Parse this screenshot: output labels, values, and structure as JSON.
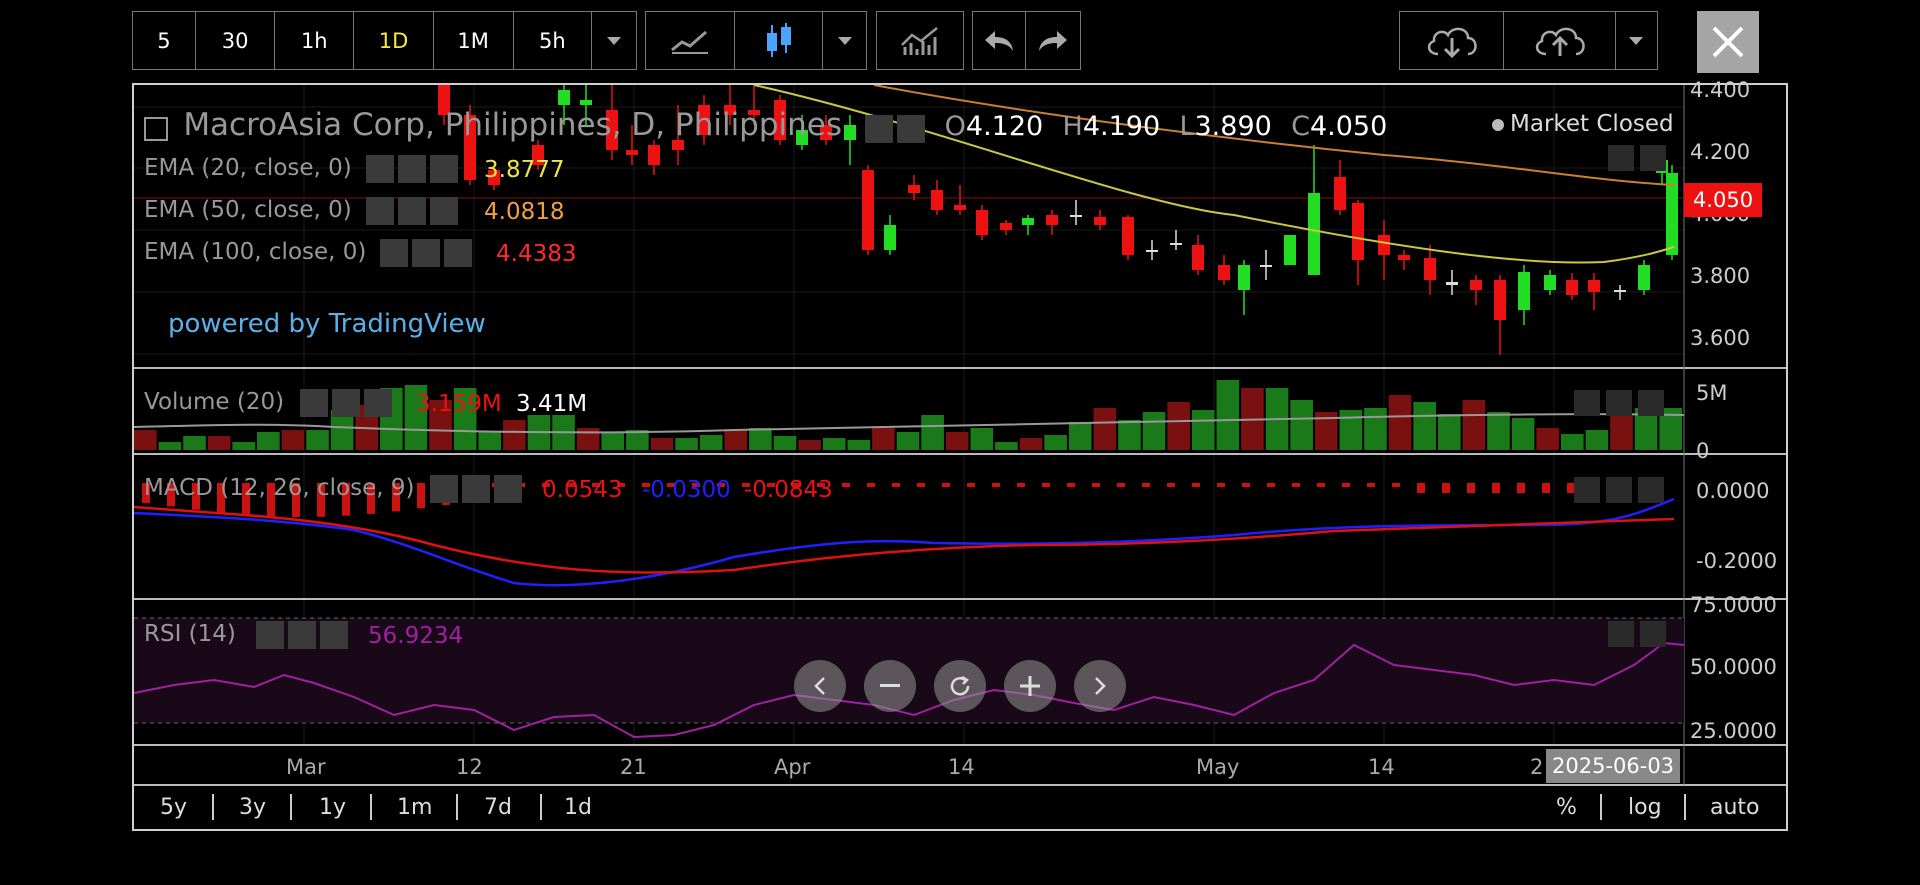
{
  "toolbar": {
    "intervals": [
      "5",
      "30",
      "1h",
      "1D",
      "1M",
      "5h"
    ],
    "active_interval": "1D"
  },
  "chart_header": {
    "symbol": "MacroAsia Corp, Philippines, D, Philippines",
    "open_label": "O",
    "open": "4.120",
    "high_label": "H",
    "high": "4.190",
    "low_label": "L",
    "low": "3.890",
    "close_label": "C",
    "close": "4.050",
    "market_status": "Market Closed"
  },
  "indicators": {
    "ema20": {
      "label": "EMA (20, close, 0)",
      "value": "3.8777",
      "color": "#e8e84a"
    },
    "ema50": {
      "label": "EMA (50, close, 0)",
      "value": "4.0818",
      "color": "#f0a040"
    },
    "ema100": {
      "label": "EMA (100, close, 0)",
      "value": "4.4383",
      "color": "#ff2a2a"
    },
    "volume": {
      "label": "Volume (20)",
      "value1": "3.159M",
      "value2": "3.41M"
    },
    "macd": {
      "label": "MACD (12, 26, close, 9)",
      "value1": "0.0543",
      "value2": "-0.0300",
      "value3": "-0.0843"
    },
    "rsi": {
      "label": "RSI (14)",
      "value": "56.9234"
    }
  },
  "branding": "powered by TradingView",
  "price_axis": {
    "main": [
      "4.400",
      "4.200",
      "4.000",
      "3.800",
      "3.600"
    ],
    "current_price": "4.050",
    "volume": [
      "5M",
      "0"
    ],
    "macd": [
      "0.0000",
      "-0.2000"
    ],
    "rsi": [
      "75.0000",
      "50.0000",
      "25.0000"
    ]
  },
  "time_axis": {
    "labels": [
      "Mar",
      "12",
      "21",
      "Apr",
      "14",
      "May",
      "14",
      "2"
    ],
    "cursor_date": "2025-06-03"
  },
  "ranges": [
    "5y",
    "3y",
    "1y",
    "1m",
    "7d",
    "1d"
  ],
  "scale_options": [
    "%",
    "log",
    "auto"
  ],
  "colors": {
    "up": "#22dd22",
    "down": "#ee1111",
    "background": "#000000"
  }
}
